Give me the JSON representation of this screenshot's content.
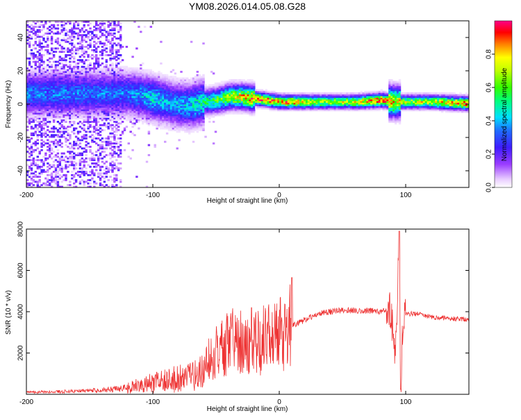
{
  "title": "YM08.2026.014.05.08.G28",
  "chart_data": [
    {
      "type": "heatmap",
      "title": "YM08.2026.014.05.08.G28",
      "xlabel": "Height of straight line (km)",
      "ylabel": "Frequency (Hz)",
      "xlim": [
        -200,
        150
      ],
      "ylim": [
        -50,
        50
      ],
      "x_ticks": [
        -200,
        -100,
        0,
        100
      ],
      "y_ticks": [
        -40,
        -20,
        0,
        20,
        40
      ],
      "grid": false,
      "colorbar": {
        "label": "Normalized spectral amplitude",
        "range": [
          0,
          1
        ],
        "ticks": [
          0.0,
          0.2,
          0.4,
          0.6,
          0.8
        ],
        "tick_labels": [
          "0.0",
          "0.2",
          "0.4",
          "0.6",
          "0.8"
        ]
      },
      "ridge": {
        "x": [
          -120,
          -110,
          -100,
          -90,
          -80,
          -70,
          -60,
          -50,
          -40,
          -30,
          -20,
          -10,
          0,
          10,
          20,
          40,
          60,
          80,
          90,
          100,
          120,
          150
        ],
        "frequency": [
          6,
          5,
          3,
          1,
          -1,
          -1,
          1,
          2,
          4,
          4,
          3,
          2,
          1,
          1,
          1,
          1,
          1,
          2,
          1,
          1,
          1,
          0
        ],
        "amplitude": [
          0.35,
          0.4,
          0.45,
          0.4,
          0.4,
          0.45,
          0.5,
          0.6,
          0.7,
          0.8,
          0.9,
          0.9,
          0.85,
          0.85,
          0.75,
          0.7,
          0.75,
          0.95,
          0.8,
          0.7,
          0.75,
          0.9
        ]
      }
    },
    {
      "type": "line",
      "xlabel": "Height of straight line (km)",
      "ylabel": "SNR (10 * v/v)",
      "xlim": [
        -200,
        150
      ],
      "ylim": [
        0,
        8000
      ],
      "x_ticks": [
        -200,
        -100,
        0,
        100
      ],
      "y_ticks": [
        2000,
        4000,
        6000,
        8000
      ],
      "color": "#ee3333",
      "series": [
        {
          "name": "SNR",
          "x": [
            -200,
            -180,
            -160,
            -140,
            -120,
            -110,
            -100,
            -90,
            -80,
            -70,
            -60,
            -55,
            -50,
            -40,
            -30,
            -20,
            -10,
            0,
            10,
            20,
            30,
            40,
            50,
            60,
            70,
            80,
            88,
            92,
            95,
            96,
            98,
            100,
            110,
            120,
            130,
            140,
            150
          ],
          "y": [
            100,
            120,
            150,
            200,
            300,
            450,
            550,
            650,
            750,
            850,
            1100,
            1800,
            2200,
            2500,
            2600,
            2400,
            2700,
            3000,
            3300,
            3600,
            3900,
            4000,
            4050,
            4050,
            4050,
            4000,
            4100,
            2000,
            7900,
            300,
            3800,
            3900,
            3900,
            3750,
            3700,
            3650,
            3600
          ]
        }
      ]
    }
  ]
}
